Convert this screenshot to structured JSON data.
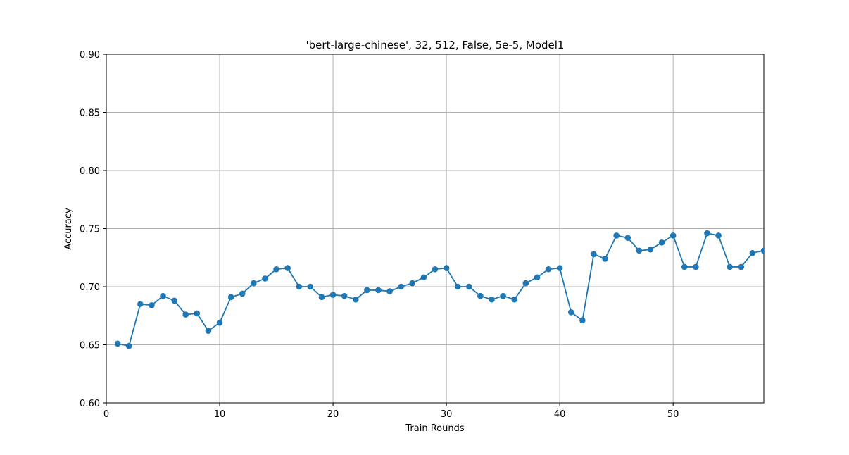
{
  "chart_data": {
    "type": "line",
    "title": "'bert-large-chinese', 32, 512, False, 5e-5, Model1",
    "xlabel": "Train Rounds",
    "ylabel": "Accuracy",
    "xlim": [
      0,
      58
    ],
    "ylim": [
      0.6,
      0.9
    ],
    "xticks": [
      "0",
      "10",
      "20",
      "30",
      "40",
      "50"
    ],
    "yticks": [
      "0.60",
      "0.65",
      "0.70",
      "0.75",
      "0.80",
      "0.85",
      "0.90"
    ],
    "grid": true,
    "series": [
      {
        "color": "#1f77b4",
        "marker": "circle",
        "x": [
          1,
          2,
          3,
          4,
          5,
          6,
          7,
          8,
          9,
          10,
          11,
          12,
          13,
          14,
          15,
          16,
          17,
          18,
          19,
          20,
          21,
          22,
          23,
          24,
          25,
          26,
          27,
          28,
          29,
          30,
          31,
          32,
          33,
          34,
          35,
          36,
          37,
          38,
          39,
          40,
          41,
          42,
          43,
          44,
          45,
          46,
          47,
          48,
          49,
          50,
          51,
          52,
          53,
          54,
          55,
          56,
          57,
          58
        ],
        "y": [
          0.651,
          0.649,
          0.685,
          0.684,
          0.692,
          0.688,
          0.676,
          0.677,
          0.662,
          0.669,
          0.691,
          0.694,
          0.703,
          0.707,
          0.715,
          0.716,
          0.7,
          0.7,
          0.691,
          0.693,
          0.692,
          0.689,
          0.697,
          0.697,
          0.696,
          0.7,
          0.703,
          0.708,
          0.715,
          0.716,
          0.7,
          0.7,
          0.692,
          0.689,
          0.692,
          0.689,
          0.703,
          0.708,
          0.715,
          0.716,
          0.678,
          0.671,
          0.728,
          0.724,
          0.744,
          0.742,
          0.731,
          0.732,
          0.738,
          0.744,
          0.717,
          0.717,
          0.746,
          0.744,
          0.717,
          0.717,
          0.729,
          0.731
        ]
      }
    ]
  }
}
